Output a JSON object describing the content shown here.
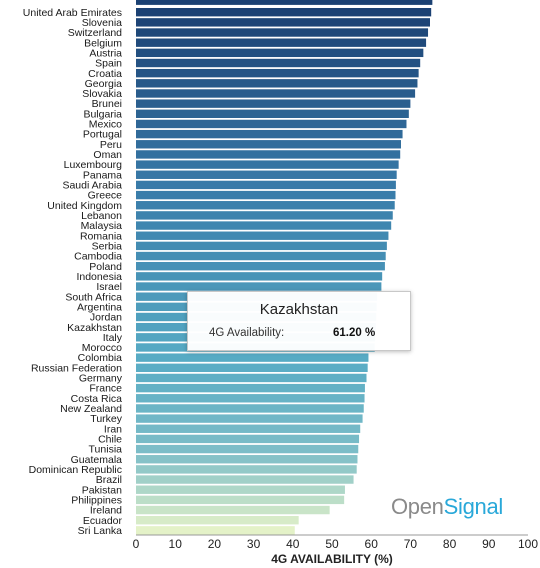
{
  "chart_data": {
    "type": "bar",
    "orientation": "horizontal",
    "xlabel": "4G AVAILABILITY (%)",
    "xlim": [
      0,
      100
    ],
    "xticks": [
      0,
      10,
      20,
      30,
      40,
      50,
      60,
      70,
      80,
      90,
      100
    ],
    "grid": false,
    "categories": [
      "United Arab Emirates",
      "Slovenia",
      "Switzerland",
      "Belgium",
      "Austria",
      "Spain",
      "Croatia",
      "Georgia",
      "Slovakia",
      "Brunei",
      "Bulgaria",
      "Mexico",
      "Portugal",
      "Peru",
      "Oman",
      "Luxembourg",
      "Panama",
      "Saudi Arabia",
      "Greece",
      "United Kingdom",
      "Lebanon",
      "Malaysia",
      "Romania",
      "Serbia",
      "Cambodia",
      "Poland",
      "Indonesia",
      "Israel",
      "South Africa",
      "Argentina",
      "Jordan",
      "Kazakhstan",
      "Italy",
      "Morocco",
      "Colombia",
      "Russian Federation",
      "Germany",
      "France",
      "Costa Rica",
      "New Zealand",
      "Turkey",
      "Iran",
      "Chile",
      "Tunisia",
      "Guatemala",
      "Dominican Republic",
      "Brazil",
      "Pakistan",
      "Philippines",
      "Ireland",
      "Ecuador",
      "Sri Lanka"
    ],
    "values": [
      75.3,
      75.0,
      74.5,
      74.0,
      73.3,
      72.5,
      72.1,
      71.8,
      71.2,
      70.0,
      69.6,
      69.0,
      68.0,
      67.6,
      67.4,
      67.0,
      66.5,
      66.3,
      66.2,
      66.0,
      65.5,
      65.1,
      64.4,
      64.0,
      63.7,
      63.5,
      62.8,
      62.6,
      61.5,
      61.4,
      61.3,
      61.2,
      61.0,
      60.9,
      59.3,
      59.1,
      58.8,
      58.4,
      58.3,
      58.1,
      57.8,
      57.2,
      56.9,
      56.7,
      56.5,
      56.3,
      55.5,
      53.3,
      53.1,
      49.4,
      41.5,
      40.5
    ]
  },
  "tooltip": {
    "title": "Kazakhstan",
    "label": "4G Availability:",
    "value": "61.20 %"
  },
  "brand": {
    "part1": "Open",
    "part2": "Signal"
  }
}
